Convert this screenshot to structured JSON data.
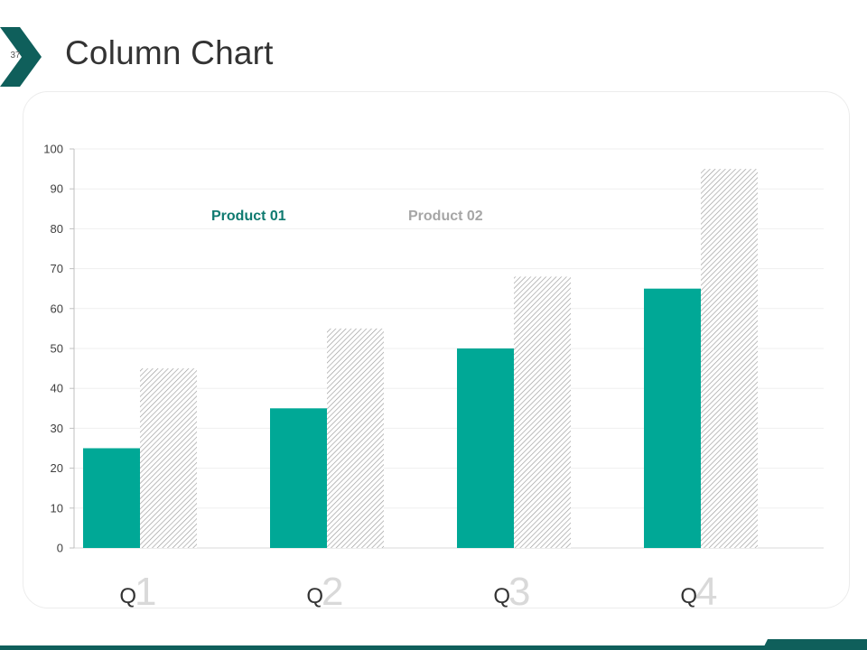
{
  "slide": {
    "number": "37",
    "title": "Column Chart"
  },
  "colors": {
    "product1": "#00a896",
    "accent_dark": "#0f5f5b",
    "product2_hatch": "#999999",
    "legend2": "#a6a6a6"
  },
  "chart_data": {
    "type": "bar",
    "title": "",
    "categories": [
      "Q1",
      "Q2",
      "Q3",
      "Q4"
    ],
    "category_prefix": "Q",
    "category_numbers": [
      "1",
      "2",
      "3",
      "4"
    ],
    "series": [
      {
        "name": "Product 01",
        "values": [
          25,
          35,
          50,
          65
        ]
      },
      {
        "name": "Product 02",
        "values": [
          45,
          55,
          68,
          95
        ]
      }
    ],
    "ylim": [
      0,
      100
    ],
    "yticks": [
      0,
      10,
      20,
      30,
      40,
      50,
      60,
      70,
      80,
      90,
      100
    ],
    "grid": true,
    "legend_position": "top-left"
  }
}
